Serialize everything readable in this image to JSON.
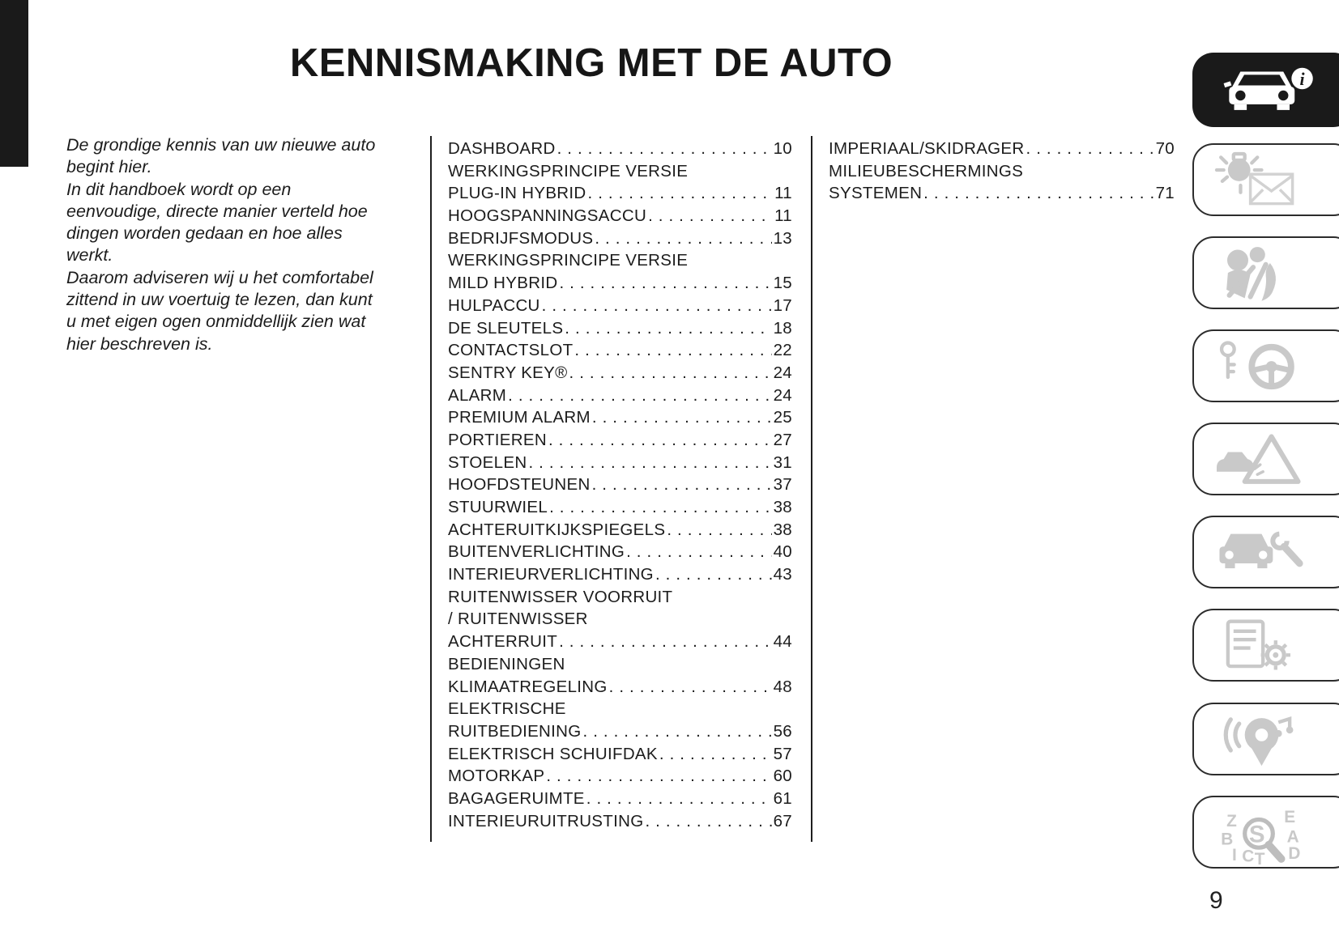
{
  "page": {
    "title": "KENNISMAKING MET DE AUTO",
    "page_number": "9"
  },
  "intro": {
    "lines": [
      "De grondige kennis van uw nieuwe auto",
      "begint hier.",
      "In dit handboek wordt op een",
      "eenvoudige, directe manier verteld hoe",
      "dingen worden gedaan en hoe alles",
      "werkt.",
      "Daarom adviseren wij u het comfortabel",
      "zittend in uw voertuig te lezen, dan kunt",
      "u met eigen ogen onmiddellijk zien wat",
      "hier beschreven is."
    ]
  },
  "toc": {
    "column1": [
      {
        "label": "DASHBOARD",
        "page": "10"
      },
      {
        "label": "WERKINGSPRINCIPE VERSIE",
        "page": ""
      },
      {
        "label": "PLUG-IN HYBRID",
        "page": "11"
      },
      {
        "label": "HOOGSPANNINGSACCU",
        "page": "11"
      },
      {
        "label": "BEDRIJFSMODUS",
        "page": "13"
      },
      {
        "label": "WERKINGSPRINCIPE VERSIE",
        "page": ""
      },
      {
        "label": "MILD HYBRID",
        "page": "15"
      },
      {
        "label": "HULPACCU",
        "page": "17"
      },
      {
        "label": "DE SLEUTELS",
        "page": "18"
      },
      {
        "label": "CONTACTSLOT",
        "page": "22"
      },
      {
        "label": "SENTRY KEY®",
        "page": "24"
      },
      {
        "label": "ALARM",
        "page": "24"
      },
      {
        "label": "PREMIUM ALARM",
        "page": "25"
      },
      {
        "label": "PORTIEREN",
        "page": "27"
      },
      {
        "label": "STOELEN",
        "page": "31"
      },
      {
        "label": "HOOFDSTEUNEN",
        "page": "37"
      },
      {
        "label": "STUURWIEL",
        "page": "38"
      },
      {
        "label": "ACHTERUITKIJKSPIEGELS",
        "page": "38"
      },
      {
        "label": "BUITENVERLICHTING",
        "page": "40"
      },
      {
        "label": "INTERIEURVERLICHTING",
        "page": "43"
      },
      {
        "label": "RUITENWISSER VOORRUIT",
        "page": ""
      },
      {
        "label": "/ RUITENWISSER",
        "page": ""
      },
      {
        "label": "ACHTERRUIT",
        "page": "44"
      },
      {
        "label": "BEDIENINGEN",
        "page": ""
      },
      {
        "label": "KLIMAATREGELING",
        "page": "48"
      },
      {
        "label": "ELEKTRISCHE",
        "page": ""
      },
      {
        "label": "RUITBEDIENING",
        "page": "56"
      },
      {
        "label": "ELEKTRISCH SCHUIFDAK",
        "page": "57"
      },
      {
        "label": "MOTORKAP",
        "page": "60"
      },
      {
        "label": "BAGAGERUIMTE",
        "page": "61"
      },
      {
        "label": "INTERIEURUITRUSTING",
        "page": "67"
      }
    ],
    "column2": [
      {
        "label": "IMPERIAAL/SKIDRAGER",
        "page": "70"
      },
      {
        "label": "MILIEUBESCHERMINGS",
        "page": ""
      },
      {
        "label": "SYSTEMEN",
        "page": "71"
      }
    ]
  },
  "chapter_rail": {
    "active_chapter": {
      "icon": "car-info",
      "name": "kennismaking-met-de-auto"
    },
    "buttons": [
      {
        "icon": "warning-lights-messages"
      },
      {
        "icon": "safety"
      },
      {
        "icon": "starting-and-driving"
      },
      {
        "icon": "emergency"
      },
      {
        "icon": "servicing-and-maintenance"
      },
      {
        "icon": "technical-data"
      },
      {
        "icon": "multimedia"
      },
      {
        "icon": "index"
      }
    ]
  },
  "colors": {
    "ink": "#1c1c1c",
    "tab_black": "#1a1a1a",
    "icon_gray": "#c9c9c9",
    "border_dark": "#2c2c2c"
  }
}
